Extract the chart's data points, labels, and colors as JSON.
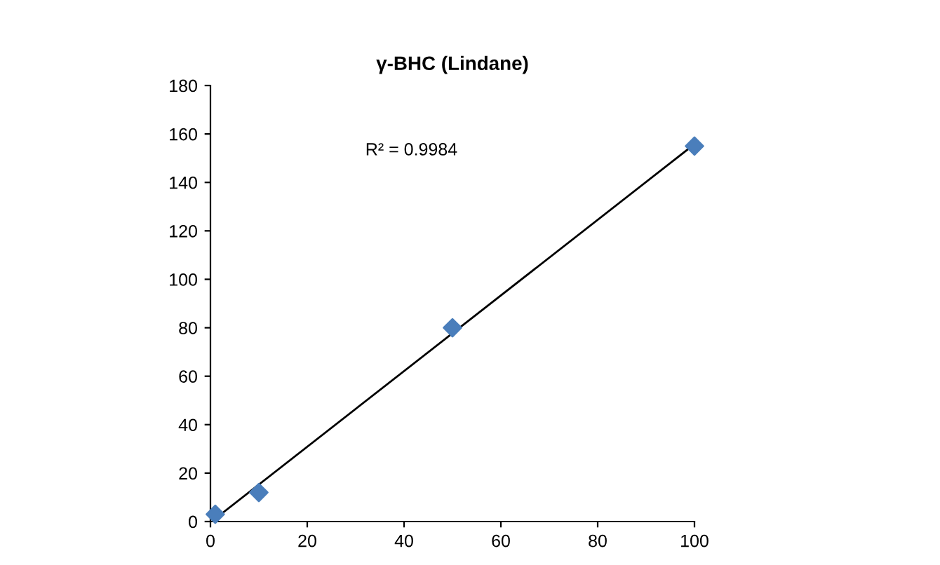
{
  "chart_data": {
    "type": "scatter",
    "title": "γ-BHC (Lindane)",
    "marker": "diamond",
    "legend": false,
    "grid": false,
    "series": [
      {
        "color": "#4a7ebb",
        "x": [
          1,
          10,
          50,
          100
        ],
        "values": [
          3,
          12,
          80,
          155
        ]
      },
      {
        "type": "line",
        "marker": "none",
        "color": "#000000",
        "x": [
          1,
          100
        ],
        "values": [
          1.2,
          155.8
        ]
      }
    ],
    "xlim": [
      0,
      100
    ],
    "xticks": [
      0,
      20,
      40,
      60,
      80,
      100
    ],
    "ylim": [
      0,
      180
    ],
    "yticks": [
      0,
      20,
      40,
      60,
      80,
      100,
      120,
      140,
      160,
      180
    ],
    "annotations": [
      "R² = 0.9984"
    ]
  }
}
